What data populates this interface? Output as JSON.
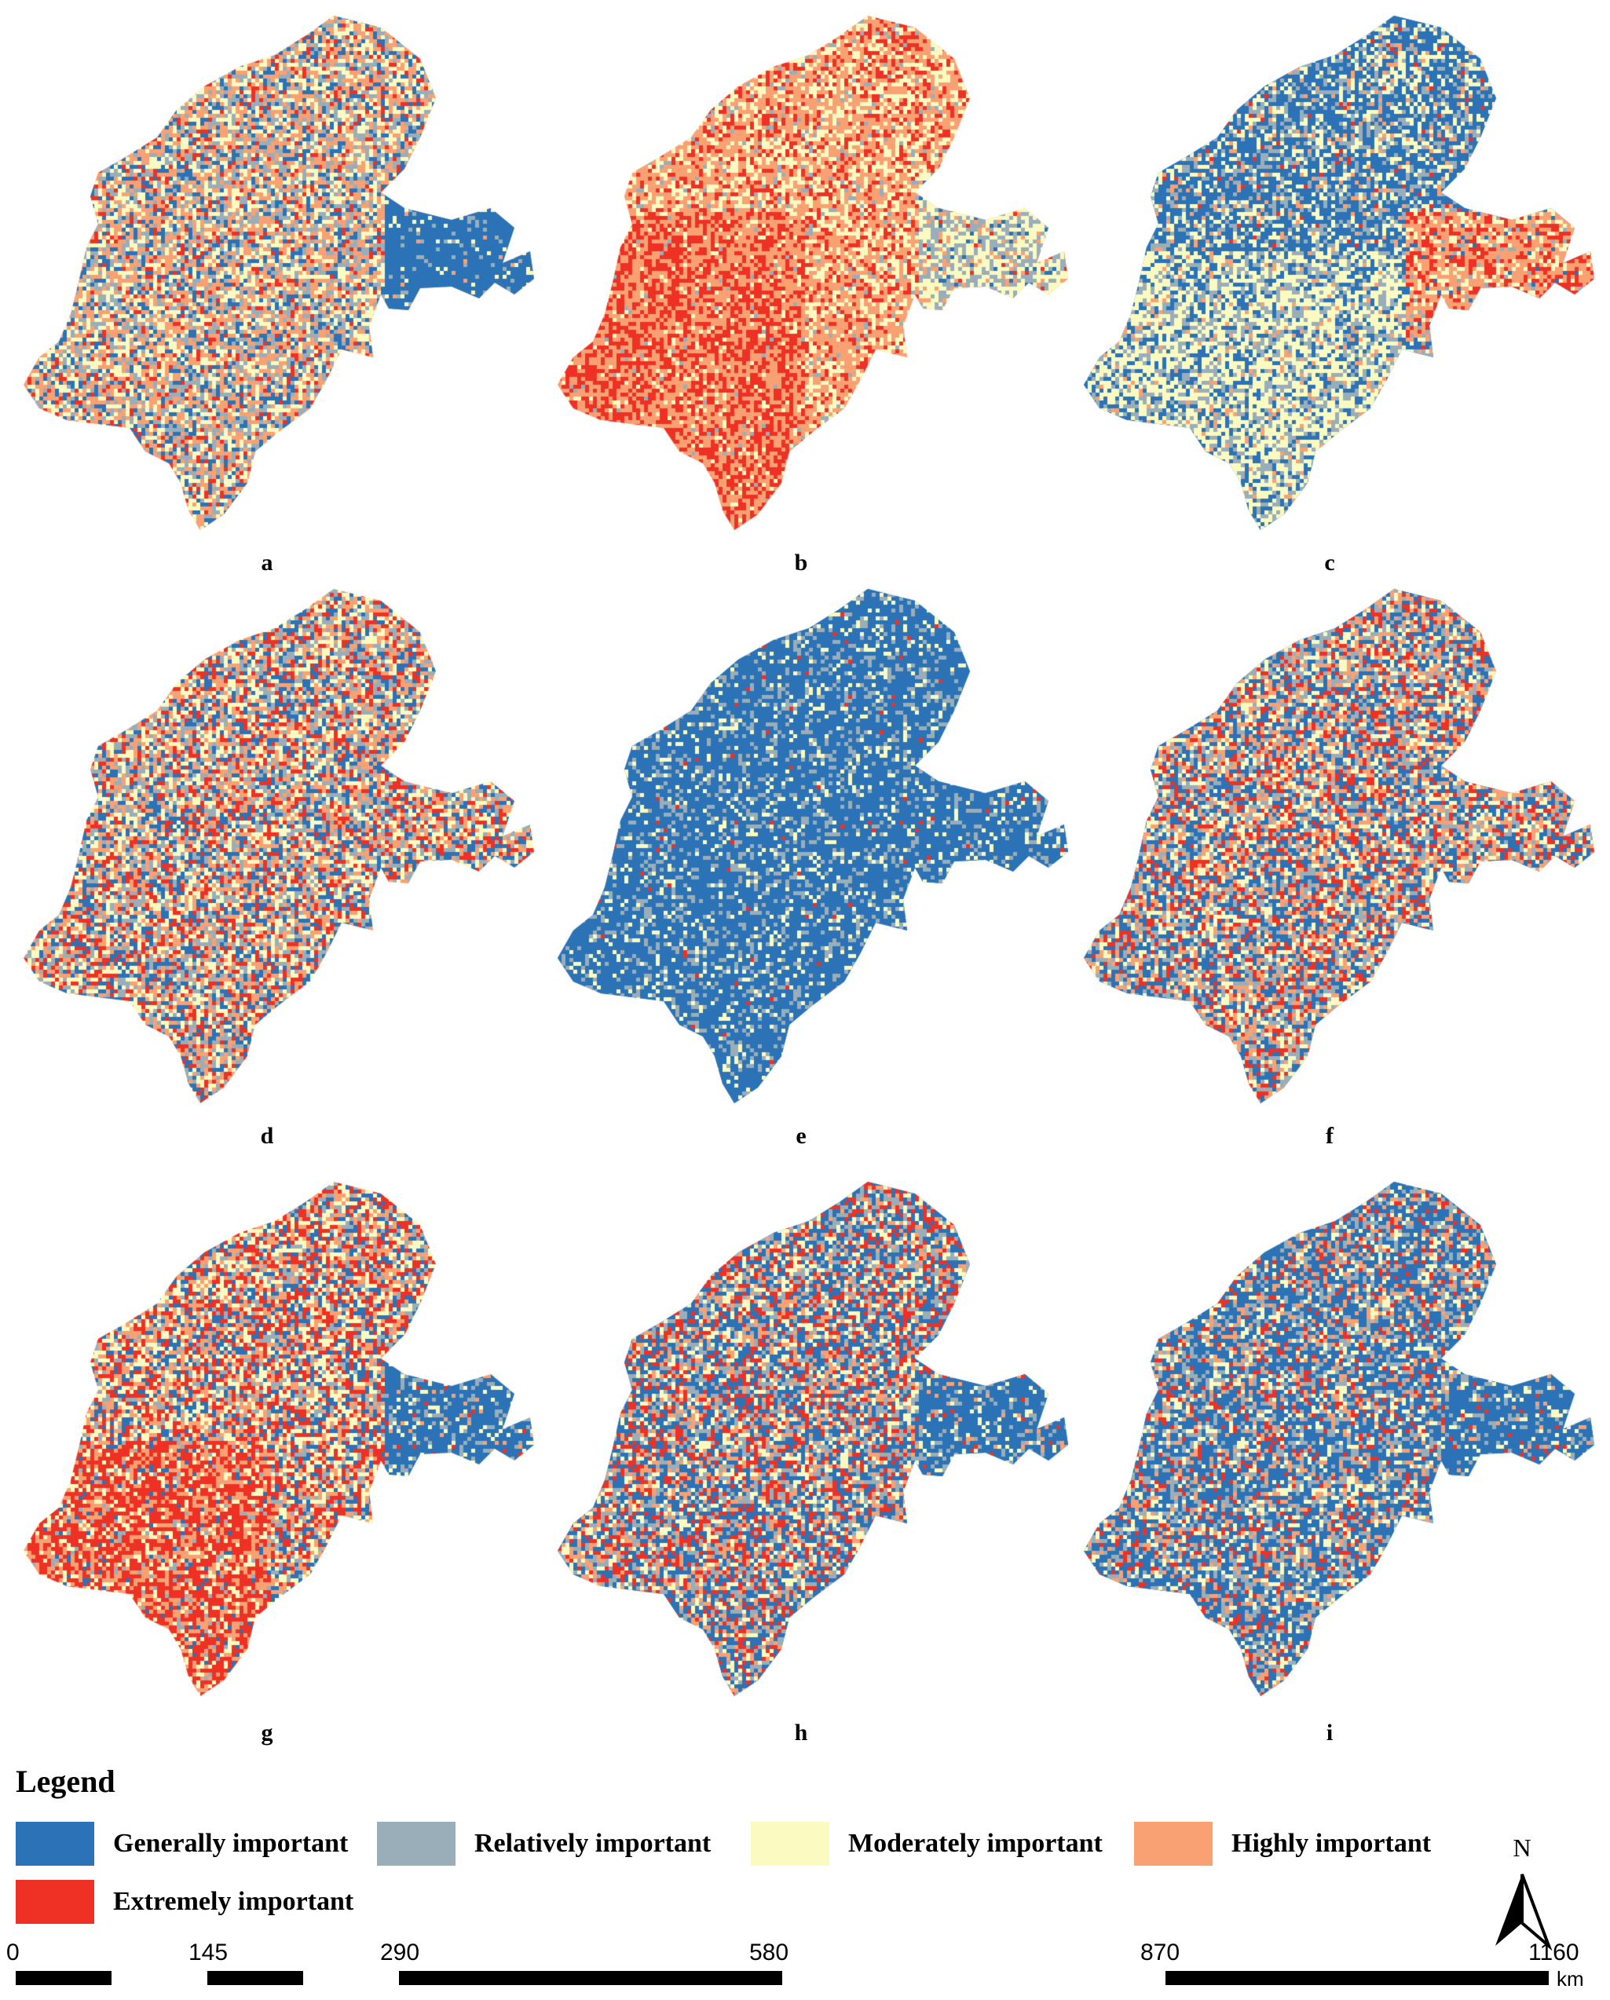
{
  "panels": [
    {
      "label": "a",
      "mix": [
        0.16,
        0.2,
        0.25,
        0.3,
        0.09
      ],
      "note": "SE lobe generally important"
    },
    {
      "label": "b",
      "mix": [
        0.0,
        0.05,
        0.3,
        0.45,
        0.2
      ],
      "note": "west highly/extremely important"
    },
    {
      "label": "c",
      "mix": [
        0.52,
        0.18,
        0.22,
        0.06,
        0.02
      ],
      "note": "blue north, orange/red SE cluster"
    },
    {
      "label": "d",
      "mix": [
        0.2,
        0.18,
        0.22,
        0.22,
        0.18
      ]
    },
    {
      "label": "e",
      "mix": [
        0.72,
        0.16,
        0.11,
        0.0,
        0.01
      ]
    },
    {
      "label": "f",
      "mix": [
        0.28,
        0.18,
        0.2,
        0.18,
        0.16
      ]
    },
    {
      "label": "g",
      "mix": [
        0.18,
        0.12,
        0.26,
        0.2,
        0.24
      ]
    },
    {
      "label": "h",
      "mix": [
        0.32,
        0.18,
        0.18,
        0.14,
        0.18
      ]
    },
    {
      "label": "i",
      "mix": [
        0.45,
        0.18,
        0.15,
        0.12,
        0.1
      ]
    }
  ],
  "legend": {
    "title": "Legend",
    "classes": [
      {
        "label": "Generally important",
        "color": "#2b73b6"
      },
      {
        "label": "Relatively important",
        "color": "#9aaeb9"
      },
      {
        "label": "Moderately important",
        "color": "#fbfac0"
      },
      {
        "label": "Highly important",
        "color": "#f9a173"
      },
      {
        "label": "Extremely important",
        "color": "#ee3124"
      }
    ]
  },
  "north_arrow": {
    "label": "N"
  },
  "scale_bar": {
    "ticks": [
      "0",
      "145",
      "290",
      "580",
      "870",
      "1160"
    ],
    "unit": "km"
  }
}
